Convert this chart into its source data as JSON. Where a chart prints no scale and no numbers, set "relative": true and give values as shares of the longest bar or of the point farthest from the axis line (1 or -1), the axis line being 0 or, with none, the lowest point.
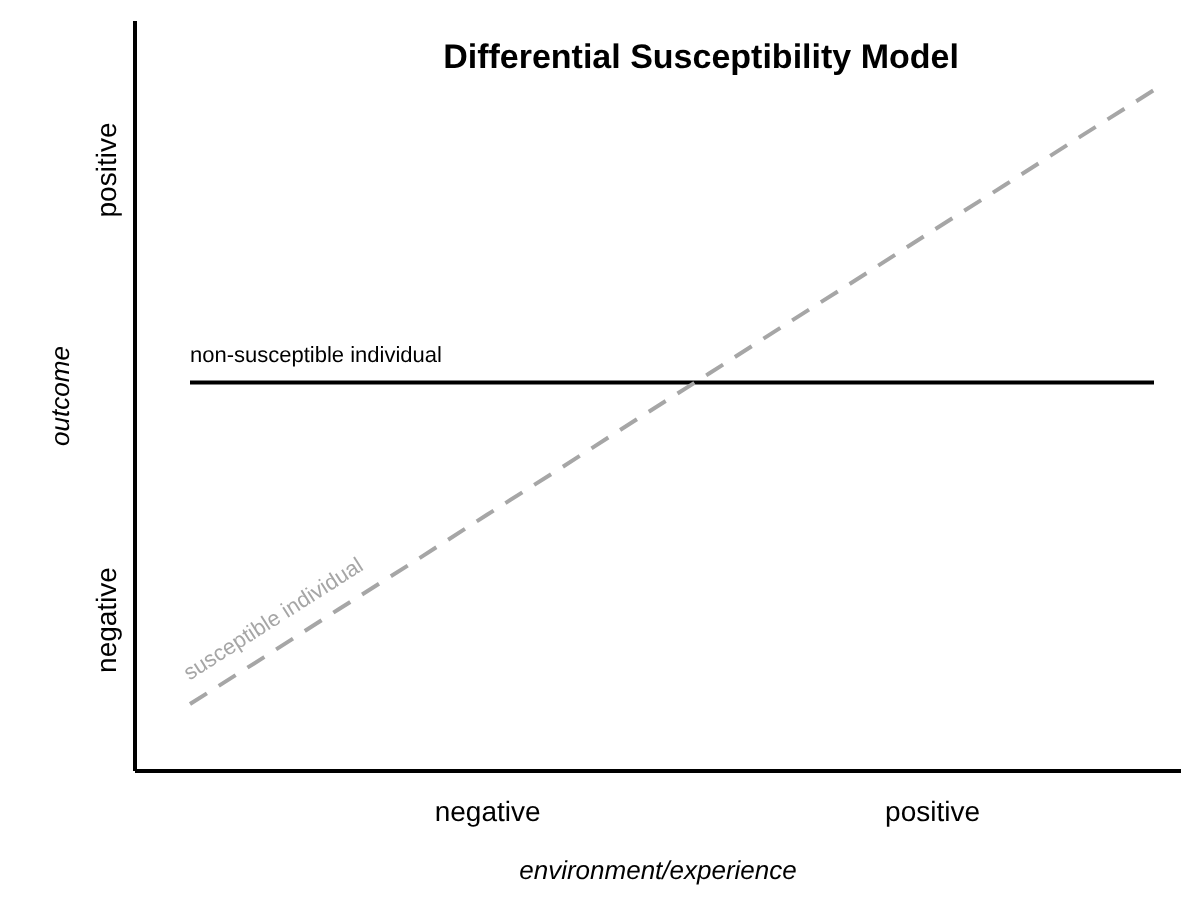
{
  "chart_data": {
    "type": "line",
    "title": "Differential Susceptibility Model",
    "xlabel": "environment/experience",
    "ylabel": "outcome",
    "relative": true,
    "categories": [
      null,
      null,
      null,
      null,
      "negative",
      null,
      null,
      null,
      null,
      null,
      "positive",
      null,
      null,
      null
    ],
    "annotations": [
      "positive",
      "negative"
    ],
    "series": [
      {
        "name": "non-susceptible individual",
        "color": "#000000",
        "line_style": "solid",
        "values": [
          0.57,
          0.57,
          0.57,
          0.57,
          0.57,
          0.57,
          0.57,
          0.57,
          0.57,
          0.57,
          0.57,
          0.57,
          0.57,
          0.57
        ]
      },
      {
        "name": "susceptible individual",
        "color": "#a6a6a6",
        "line_style": "dashed",
        "values": [
          0.097,
          0.166,
          0.236,
          0.305,
          0.375,
          0.444,
          0.514,
          0.583,
          0.653,
          0.722,
          0.792,
          0.861,
          0.931,
          1
        ]
      }
    ],
    "grid": false,
    "marker": "none"
  }
}
